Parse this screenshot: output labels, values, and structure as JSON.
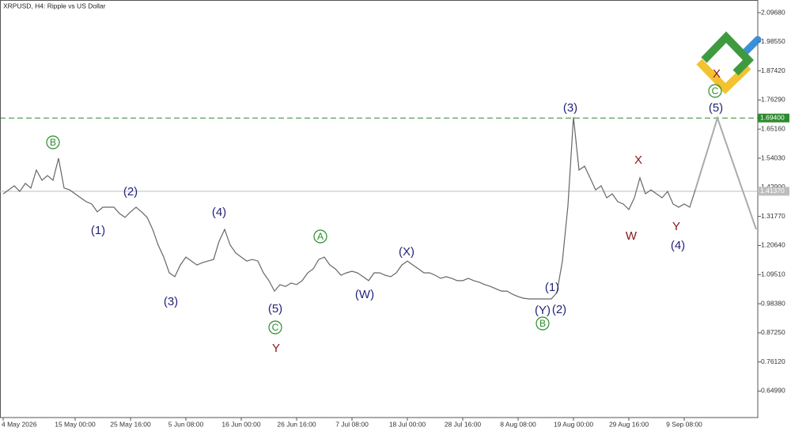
{
  "chart_data": {
    "type": "line",
    "title": "XRPUSD, H4:  Ripple vs US Dollar",
    "categories": [
      "4 May 2026",
      null,
      null,
      null,
      null,
      null,
      null,
      null,
      null,
      null,
      null,
      null,
      null,
      "15 May 00:00",
      null,
      null,
      null,
      null,
      null,
      null,
      null,
      null,
      null,
      "25 May 16:00",
      null,
      null,
      null,
      null,
      null,
      null,
      null,
      null,
      null,
      "5 Jun 08:00",
      null,
      null,
      null,
      null,
      null,
      null,
      null,
      null,
      null,
      "16 Jun 00:00",
      null,
      null,
      null,
      null,
      null,
      null,
      null,
      null,
      null,
      "26 Jun 16:00",
      null,
      null,
      null,
      null,
      null,
      null,
      null,
      null,
      null,
      "7 Jul 08:00",
      null,
      null,
      null,
      null,
      null,
      null,
      null,
      null,
      null,
      "18 Jul 00:00",
      null,
      null,
      null,
      null,
      null,
      null,
      null,
      null,
      null,
      "28 Jul 16:00",
      null,
      null,
      null,
      null,
      null,
      null,
      null,
      null,
      null,
      "8 Aug 08:00",
      null,
      null,
      null,
      null,
      null,
      null,
      null,
      null,
      null,
      "19 Aug 00:00",
      null,
      null,
      null,
      null,
      null,
      null,
      null,
      null,
      null,
      "29 Aug 16:00",
      null,
      null,
      null,
      null,
      null,
      null,
      null,
      null,
      null,
      "9 Sep 08:00",
      null,
      null,
      null,
      null,
      null,
      null,
      null,
      null,
      null,
      null,
      null,
      null,
      null
    ],
    "series": [
      {
        "color": "#666666",
        "values": [
          1.404,
          1.419,
          1.435,
          1.413,
          1.444,
          1.426,
          1.495,
          1.456,
          1.474,
          1.456,
          1.54,
          1.426,
          1.419,
          1.404,
          1.389,
          1.374,
          1.365,
          1.335,
          1.353,
          1.353,
          1.353,
          1.329,
          1.314,
          1.335,
          1.353,
          1.335,
          1.314,
          1.268,
          1.208,
          1.162,
          1.102,
          1.087,
          1.132,
          1.162,
          1.147,
          1.132,
          1.141,
          1.147,
          1.153,
          1.223,
          1.268,
          1.208,
          1.178,
          1.162,
          1.147,
          1.153,
          1.147,
          1.102,
          1.072,
          1.032,
          1.057,
          1.05,
          1.063,
          1.057,
          1.072,
          1.102,
          1.117,
          1.153,
          1.162,
          1.132,
          1.117,
          1.093,
          1.102,
          1.108,
          1.102,
          1.087,
          1.072,
          1.102,
          1.102,
          1.093,
          1.087,
          1.102,
          1.132,
          1.147,
          1.132,
          1.117,
          1.102,
          1.102,
          1.093,
          1.081,
          1.087,
          1.081,
          1.072,
          1.072,
          1.081,
          1.072,
          1.066,
          1.057,
          1.05,
          1.041,
          1.032,
          1.032,
          1.02,
          1.011,
          1.005,
          1.002,
          1.002,
          1.002,
          1.002,
          1.002,
          1.026,
          1.147,
          1.359,
          1.697,
          1.495,
          1.51,
          1.465,
          1.419,
          1.435,
          1.389,
          1.404,
          1.374,
          1.365,
          1.344,
          1.389,
          1.465,
          1.404,
          1.419,
          1.404,
          1.389,
          1.413,
          1.365,
          1.353,
          1.365,
          1.353,
          1.419,
          null,
          null,
          null,
          null,
          null,
          null,
          null,
          null,
          null,
          null,
          null
        ]
      },
      {
        "color": "#aaaaaa",
        "values": [
          null,
          null,
          null,
          null,
          null,
          null,
          null,
          null,
          null,
          null,
          null,
          null,
          null,
          null,
          null,
          null,
          null,
          null,
          null,
          null,
          null,
          null,
          null,
          null,
          null,
          null,
          null,
          null,
          null,
          null,
          null,
          null,
          null,
          null,
          null,
          null,
          null,
          null,
          null,
          null,
          null,
          null,
          null,
          null,
          null,
          null,
          null,
          null,
          null,
          null,
          null,
          null,
          null,
          null,
          null,
          null,
          null,
          null,
          null,
          null,
          null,
          null,
          null,
          null,
          null,
          null,
          null,
          null,
          null,
          null,
          null,
          null,
          null,
          null,
          null,
          null,
          null,
          null,
          null,
          null,
          null,
          null,
          null,
          null,
          null,
          null,
          null,
          null,
          null,
          null,
          null,
          null,
          null,
          null,
          null,
          null,
          null,
          null,
          null,
          null,
          null,
          null,
          null,
          null,
          null,
          null,
          null,
          null,
          null,
          null,
          null,
          null,
          null,
          null,
          null,
          null,
          null,
          null,
          null,
          null,
          null,
          null,
          null,
          null,
          null,
          1.419,
          1.488,
          1.556,
          1.625,
          1.694,
          1.633,
          1.572,
          1.511,
          1.45,
          1.39,
          1.329,
          1.268
        ]
      }
    ],
    "ylim": [
      0.5425,
      2.1452
    ],
    "yticks": [
      {
        "value": 2.0968,
        "label": "2.09680"
      },
      {
        "value": 1.9855,
        "label": "1.98550"
      },
      {
        "value": 1.8742,
        "label": "1.87420"
      },
      {
        "value": 1.7629,
        "label": "1.76290"
      },
      {
        "value": 1.6516,
        "label": "1.65160"
      },
      {
        "value": 1.5403,
        "label": "1.54030"
      },
      {
        "value": 1.429,
        "label": "1.42900"
      },
      {
        "value": 1.3177,
        "label": "1.31770"
      },
      {
        "value": 1.2064,
        "label": "1.20640"
      },
      {
        "value": 1.0951,
        "label": "1.09510"
      },
      {
        "value": 0.9838,
        "label": "0.98380"
      },
      {
        "value": 0.8725,
        "label": "0.87250"
      },
      {
        "value": 0.7612,
        "label": "0.76120"
      },
      {
        "value": 0.6499,
        "label": "0.64990"
      }
    ],
    "levels": [
      {
        "value": 1.694,
        "label": "1.69400",
        "color": "#2f8a2f",
        "style": "dashed"
      },
      {
        "value": 1.4137,
        "label": "1.41370",
        "color": "#bdbdbd",
        "style": "solid"
      }
    ],
    "annotations": [
      {
        "text": "B",
        "color": "#2a8a2a",
        "circled": true
      },
      {
        "text": "(1)",
        "color": "#23237a"
      },
      {
        "text": "(2)",
        "color": "#23237a"
      },
      {
        "text": "(3)",
        "color": "#23237a"
      },
      {
        "text": "(4)",
        "color": "#23237a"
      },
      {
        "text": "(5)",
        "color": "#23237a"
      },
      {
        "text": "C",
        "color": "#2a8a2a",
        "circled": true
      },
      {
        "text": "Y",
        "color": "#8a1515"
      },
      {
        "text": "A",
        "color": "#2a8a2a",
        "circled": true
      },
      {
        "text": "(W)",
        "color": "#23237a"
      },
      {
        "text": "(X)",
        "color": "#23237a"
      },
      {
        "text": "(1)",
        "color": "#23237a"
      },
      {
        "text": "(Y)",
        "color": "#23237a"
      },
      {
        "text": "(2)",
        "color": "#23237a"
      },
      {
        "text": "B",
        "color": "#2a8a2a",
        "circled": true
      },
      {
        "text": "(3)",
        "color": "#23237a"
      },
      {
        "text": "X",
        "color": "#8a1515"
      },
      {
        "text": "W",
        "color": "#8a1515"
      },
      {
        "text": "Y",
        "color": "#8a1515"
      },
      {
        "text": "(4)",
        "color": "#23237a"
      },
      {
        "text": "X",
        "color": "#8a1515"
      },
      {
        "text": "C",
        "color": "#2a8a2a",
        "circled": true
      },
      {
        "text": "(5)",
        "color": "#23237a"
      }
    ]
  }
}
